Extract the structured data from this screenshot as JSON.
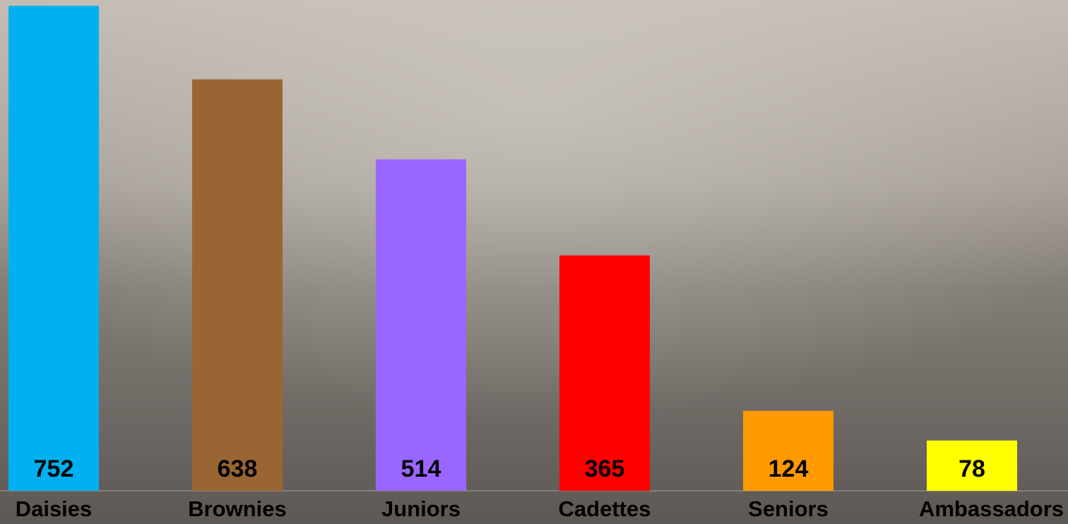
{
  "chart_data": {
    "type": "bar",
    "categories": [
      "Daisies",
      "Brownies",
      "Juniors",
      "Cadettes",
      "Seniors",
      "Ambassadors"
    ],
    "values": [
      752,
      638,
      514,
      365,
      124,
      78
    ],
    "colors": [
      "#00b0f0",
      "#996633",
      "#9966ff",
      "#ff0000",
      "#ff9900",
      "#ffff00"
    ],
    "ylim": [
      0,
      760
    ]
  }
}
